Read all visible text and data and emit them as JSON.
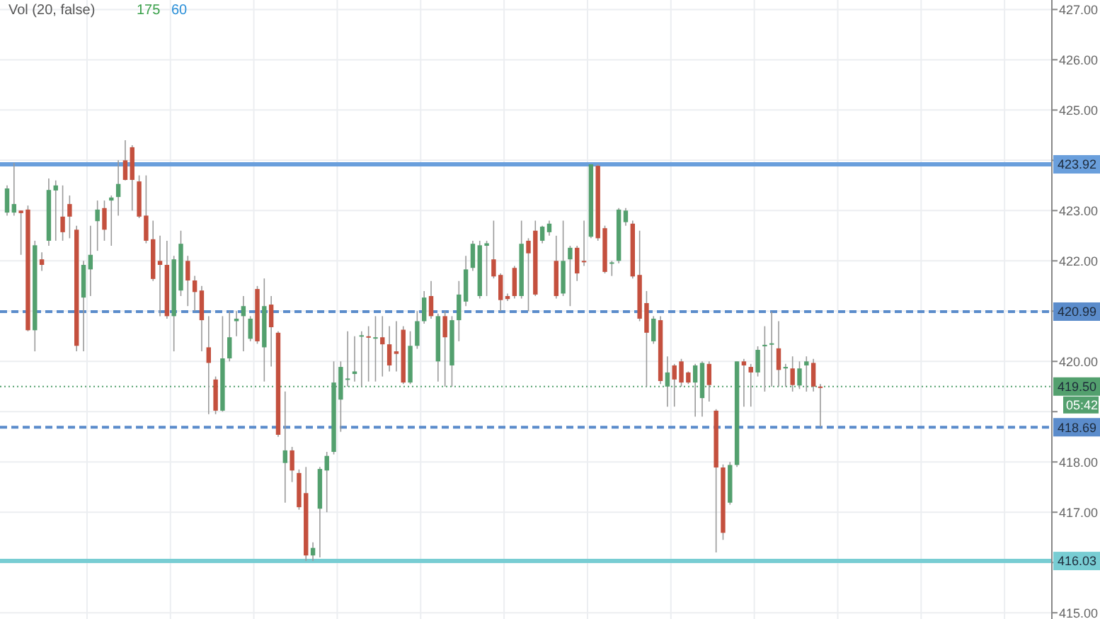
{
  "chart_data": {
    "type": "candlestick",
    "categories": [
      null,
      null,
      null,
      null,
      null,
      null,
      null,
      null,
      null,
      null,
      null,
      null,
      null,
      null,
      null,
      null,
      null,
      null,
      null,
      null,
      null,
      null,
      null,
      null,
      null,
      null,
      null,
      null,
      null,
      null,
      null,
      null,
      null,
      null,
      null,
      null,
      null,
      null,
      null,
      null,
      null,
      null,
      null,
      null,
      null,
      null,
      null,
      null,
      null,
      null,
      null,
      null,
      null,
      null,
      null,
      null,
      null,
      null,
      null,
      null,
      null,
      null,
      null,
      null,
      null,
      null,
      null,
      null,
      null,
      null,
      null,
      null,
      null,
      null,
      null,
      null,
      null,
      null,
      null,
      null,
      null,
      null,
      null,
      null,
      null,
      null,
      null,
      null,
      null,
      null,
      null,
      null,
      null,
      null,
      null,
      null,
      null,
      null,
      null,
      null,
      null,
      null,
      null,
      null,
      null,
      null,
      null,
      null,
      null,
      null,
      null,
      null,
      null,
      null,
      null,
      null,
      null,
      null,
      null,
      null,
      null,
      null,
      null,
      null,
      null,
      null,
      null,
      null,
      null,
      null,
      null,
      null,
      null,
      null,
      null,
      null,
      null,
      null,
      null,
      null,
      null,
      null,
      null,
      null,
      null,
      null,
      null,
      null,
      null,
      null,
      null
    ],
    "colors": [
      "#53a06e",
      "#53a06e",
      "#c4503e",
      "#c4503e",
      "#53a06e",
      "#c4503e",
      "#53a06e",
      "#53a06e",
      "#c4503e",
      "#c4503e",
      "#c4503e",
      "#53a06e",
      "#53a06e",
      "#53a06e",
      "#c4503e",
      "#53a06e",
      "#53a06e",
      "#c4503e",
      "#c4503e",
      "#c4503e",
      "#c4503e",
      "#c4503e",
      "#c4503e",
      "#c4503e",
      "#53a06e",
      "#53a06e",
      "#c4503e",
      "#c4503e",
      "#c4503e",
      "#c4503e",
      "#c4503e",
      "#53a06e",
      "#53a06e",
      "#53a06e",
      "#53a06e",
      "#53a06e",
      "#c4503e",
      "#53a06e",
      "#c4503e",
      "#c4503e",
      "#53a06e",
      "#c4503e",
      "#c4503e",
      "#c4503e",
      "#53a06e",
      "#53a06e",
      "#53a06e",
      "#53a06e",
      "#53a06e",
      "#53a06e",
      "#53a06e",
      "#53a06e",
      "#c4503e",
      "#53a06e",
      "#c4503e",
      "#c4503e",
      "#c4503e",
      "#c4503e",
      "#53a06e",
      "#53a06e",
      "#53a06e",
      "#c4503e",
      "#53a06e",
      "#c4503e",
      "#53a06e",
      "#53a06e",
      "#53a06e",
      "#53a06e",
      "#53a06e",
      "#53a06e",
      "#c4503e",
      "#c4503e",
      "#c4503e",
      "#c4503e",
      "#53a06e",
      "#c4503e",
      "#c4503e",
      "#53a06e",
      "#53a06e",
      "#c4503e",
      "#53a06e",
      "#53a06e",
      "#c4503e",
      "#c4503e",
      "#53a06e",
      "#c4503e",
      "#c4503e",
      "#53a06e",
      "#53a06e",
      "#53a06e",
      "#c4503e",
      "#c4503e",
      "#c4503e",
      "#53a06e",
      "#c4503e",
      "#53a06e",
      "#c4503e",
      "#c4503e",
      "#c4503e",
      "#53a06e",
      "#53a06e",
      "#c4503e",
      "#c4503e",
      "#c4503e",
      "#53a06e",
      "#53a06e",
      "#c4503e",
      "#c4503e",
      "#53a06e",
      "#53a06e",
      "#53a06e",
      "#c4503e",
      "#53a06e",
      "#c4503e",
      "#53a06e",
      "#53a06e",
      "#c4503e",
      "#c4503e",
      null,
      null,
      null,
      null,
      null,
      null,
      null,
      null,
      null,
      null,
      null,
      null,
      null,
      null,
      null,
      null,
      null,
      null,
      null,
      null,
      null,
      null,
      null,
      null,
      null,
      null,
      null,
      null,
      null,
      null,
      null,
      null,
      null
    ],
    "ohlc": [
      [
        422.96,
        423.5,
        422.9,
        423.44
      ],
      [
        422.96,
        423.95,
        422.9,
        423.13
      ],
      [
        423.0,
        423.0,
        422.12,
        422.95
      ],
      [
        423.02,
        423.1,
        420.6,
        420.62
      ],
      [
        420.62,
        422.4,
        420.2,
        422.31
      ],
      [
        422.03,
        422.17,
        421.8,
        421.92
      ],
      [
        422.4,
        423.64,
        422.3,
        423.41
      ],
      [
        423.4,
        423.6,
        422.4,
        423.5
      ],
      [
        422.88,
        423.5,
        422.4,
        422.57
      ],
      [
        423.13,
        423.3,
        422.45,
        422.88
      ],
      [
        422.62,
        422.7,
        420.2,
        420.31
      ],
      [
        421.27,
        422.0,
        420.2,
        421.92
      ],
      [
        421.83,
        422.7,
        421.3,
        422.12
      ],
      [
        422.79,
        423.2,
        422.2,
        423.02
      ],
      [
        423.05,
        423.2,
        422.4,
        422.62
      ],
      [
        423.2,
        423.3,
        422.3,
        423.26
      ],
      [
        423.27,
        424.0,
        422.9,
        423.53
      ],
      [
        424.0,
        424.4,
        423.6,
        423.61
      ],
      [
        424.26,
        424.3,
        423.0,
        423.61
      ],
      [
        423.58,
        423.7,
        422.85,
        422.88
      ],
      [
        422.9,
        423.7,
        422.35,
        422.4
      ],
      [
        422.43,
        422.8,
        421.6,
        421.64
      ],
      [
        422.0,
        422.5,
        420.9,
        421.92
      ],
      [
        421.92,
        422.4,
        420.85,
        420.9
      ],
      [
        420.9,
        422.1,
        420.2,
        422.03
      ],
      [
        421.41,
        422.6,
        421.3,
        422.34
      ],
      [
        422.0,
        422.1,
        421.1,
        421.61
      ],
      [
        421.61,
        421.7,
        421.0,
        421.38
      ],
      [
        421.41,
        421.5,
        420.2,
        420.82
      ],
      [
        420.28,
        420.9,
        418.95,
        419.97
      ],
      [
        419.64,
        419.7,
        418.95,
        419.02
      ],
      [
        419.02,
        420.9,
        419.0,
        420.06
      ],
      [
        420.06,
        421.0,
        420.0,
        420.48
      ],
      [
        420.8,
        421.0,
        420.5,
        420.85
      ],
      [
        420.9,
        421.3,
        420.2,
        421.1
      ],
      [
        420.45,
        420.9,
        420.4,
        420.85
      ],
      [
        421.44,
        421.5,
        420.35,
        420.4
      ],
      [
        420.28,
        421.65,
        419.6,
        421.1
      ],
      [
        421.13,
        421.3,
        419.9,
        420.68
      ],
      [
        420.57,
        420.6,
        418.5,
        418.54
      ],
      [
        417.98,
        419.4,
        417.19,
        418.23
      ],
      [
        418.23,
        418.3,
        417.6,
        417.83
      ],
      [
        417.78,
        417.85,
        417.05,
        417.1
      ],
      [
        417.38,
        417.9,
        416.03,
        416.14
      ],
      [
        416.14,
        416.4,
        416.03,
        416.29
      ],
      [
        417.07,
        417.9,
        416.1,
        417.86
      ],
      [
        417.83,
        418.2,
        417.0,
        418.12
      ],
      [
        418.2,
        420.0,
        418.15,
        419.58
      ],
      [
        419.24,
        420.0,
        418.6,
        419.89
      ],
      [
        419.64,
        420.6,
        419.5,
        419.66
      ],
      [
        419.75,
        420.5,
        419.6,
        419.8
      ],
      [
        420.5,
        420.6,
        419.5,
        420.52
      ],
      [
        420.5,
        420.7,
        419.6,
        420.48
      ],
      [
        420.47,
        420.9,
        419.6,
        420.48
      ],
      [
        420.48,
        420.9,
        419.7,
        420.34
      ],
      [
        420.34,
        420.7,
        419.8,
        419.92
      ],
      [
        420.2,
        420.8,
        419.8,
        420.15
      ],
      [
        420.63,
        420.7,
        419.55,
        419.58
      ],
      [
        419.58,
        420.6,
        419.55,
        420.31
      ],
      [
        420.31,
        421.0,
        420.25,
        420.8
      ],
      [
        420.8,
        421.4,
        420.75,
        421.27
      ],
      [
        421.3,
        421.6,
        420.85,
        420.9
      ],
      [
        420.0,
        420.95,
        419.6,
        420.9
      ],
      [
        420.9,
        421.0,
        419.5,
        420.48
      ],
      [
        419.92,
        420.9,
        419.5,
        420.82
      ],
      [
        420.82,
        421.6,
        420.4,
        421.33
      ],
      [
        421.19,
        422.1,
        421.1,
        421.83
      ],
      [
        421.86,
        422.4,
        421.8,
        422.34
      ],
      [
        421.3,
        422.4,
        421.25,
        422.31
      ],
      [
        422.3,
        422.4,
        421.3,
        422.35
      ],
      [
        422.03,
        422.8,
        421.65,
        421.69
      ],
      [
        421.72,
        421.75,
        421.0,
        421.22
      ],
      [
        421.3,
        421.35,
        421.2,
        421.24
      ],
      [
        421.86,
        421.9,
        421.25,
        421.3
      ],
      [
        421.3,
        422.8,
        421.25,
        422.34
      ],
      [
        422.4,
        422.45,
        421.0,
        422.15
      ],
      [
        422.6,
        422.8,
        421.3,
        421.33
      ],
      [
        422.4,
        422.7,
        422.35,
        422.68
      ],
      [
        422.57,
        422.8,
        422.5,
        422.74
      ],
      [
        422.0,
        422.5,
        421.25,
        421.3
      ],
      [
        421.35,
        422.8,
        421.3,
        422.0
      ],
      [
        422.03,
        422.3,
        421.1,
        422.26
      ],
      [
        422.26,
        422.3,
        421.6,
        421.75
      ],
      [
        422.0,
        422.8,
        421.9,
        422.0
      ],
      [
        422.48,
        423.92,
        422.45,
        423.92
      ],
      [
        423.89,
        423.92,
        422.4,
        422.45
      ],
      [
        422.65,
        422.7,
        421.75,
        421.78
      ],
      [
        421.95,
        422.0,
        421.7,
        421.97
      ],
      [
        422.0,
        423.05,
        421.95,
        423.02
      ],
      [
        422.77,
        423.05,
        422.7,
        423.0
      ],
      [
        422.74,
        422.8,
        421.65,
        421.69
      ],
      [
        421.72,
        422.6,
        420.8,
        420.85
      ],
      [
        421.16,
        421.4,
        419.5,
        420.57
      ],
      [
        420.4,
        420.9,
        420.35,
        420.85
      ],
      [
        420.82,
        420.9,
        419.55,
        419.61
      ],
      [
        419.5,
        420.1,
        419.1,
        419.78
      ],
      [
        419.92,
        419.95,
        419.1,
        419.64
      ],
      [
        420.0,
        420.05,
        419.5,
        419.58
      ],
      [
        419.78,
        419.8,
        419.55,
        419.58
      ],
      [
        419.58,
        419.95,
        418.9,
        419.92
      ],
      [
        419.27,
        420.0,
        418.9,
        419.97
      ],
      [
        419.95,
        420.0,
        419.2,
        419.53
      ],
      [
        419.02,
        419.05,
        416.2,
        417.89
      ],
      [
        417.89,
        417.95,
        416.45,
        416.59
      ],
      [
        417.19,
        418.0,
        417.15,
        417.94
      ],
      [
        417.94,
        420.0,
        417.9,
        420.0
      ],
      [
        420.0,
        420.05,
        419.1,
        419.92
      ],
      [
        419.89,
        419.95,
        419.1,
        419.78
      ],
      [
        419.78,
        420.3,
        419.7,
        420.23
      ],
      [
        420.3,
        420.7,
        419.4,
        420.33
      ],
      [
        420.34,
        420.99,
        419.5,
        420.36
      ],
      [
        420.26,
        420.8,
        419.5,
        419.83
      ],
      [
        419.86,
        419.95,
        419.5,
        419.89
      ],
      [
        419.86,
        420.1,
        419.4,
        419.53
      ],
      [
        419.52,
        420.0,
        419.45,
        419.86
      ],
      [
        419.92,
        420.1,
        419.4,
        420.0
      ],
      [
        419.97,
        420.05,
        419.4,
        419.5
      ],
      [
        419.5,
        419.55,
        418.7,
        419.5
      ],
      null,
      null,
      null,
      null,
      null,
      null,
      null,
      null,
      null,
      null,
      null,
      null,
      null,
      null,
      null,
      null,
      null,
      null,
      null,
      null,
      null,
      null,
      null,
      null,
      null,
      null,
      null,
      null,
      null,
      null,
      null,
      null,
      null
    ],
    "ylim": [
      415,
      427
    ],
    "yticks": [
      {
        "value": 415,
        "label": "415.00"
      },
      {
        "value": 416,
        "label": null
      },
      {
        "value": 417,
        "label": "417.00"
      },
      {
        "value": 418,
        "label": "418.00"
      },
      {
        "value": 419,
        "label": null
      },
      {
        "value": 420,
        "label": "420.00"
      },
      {
        "value": 421,
        "label": null
      },
      {
        "value": 422,
        "label": "422.00"
      },
      {
        "value": 423,
        "label": "423.00"
      },
      {
        "value": 424,
        "label": null
      },
      {
        "value": 425,
        "label": "425.00"
      },
      {
        "value": 426,
        "label": "426.00"
      },
      {
        "value": 427,
        "label": "427.00"
      }
    ],
    "grid": true,
    "ref_lines": [
      {
        "axis": "y",
        "value": 423.92,
        "label": "423.92",
        "color": "#6a9fdc",
        "line_style": "solid"
      },
      {
        "axis": "y",
        "value": 420.99,
        "label": "420.99",
        "color": "#5b8ccb",
        "line_style": "dashed"
      },
      {
        "axis": "y",
        "value": 418.69,
        "label": "418.69",
        "color": "#5b8ccb",
        "line_style": "dashed"
      },
      {
        "axis": "y",
        "value": 416.03,
        "label": "416.03",
        "color": "#78cdd3",
        "line_style": "solid"
      },
      {
        "axis": "y",
        "value": 419.5,
        "label": "419.50",
        "color": "#53a06e",
        "line_style": "dotted"
      }
    ],
    "annotations": [
      "Vol (20, false)",
      "175",
      "60",
      "05:42"
    ]
  }
}
